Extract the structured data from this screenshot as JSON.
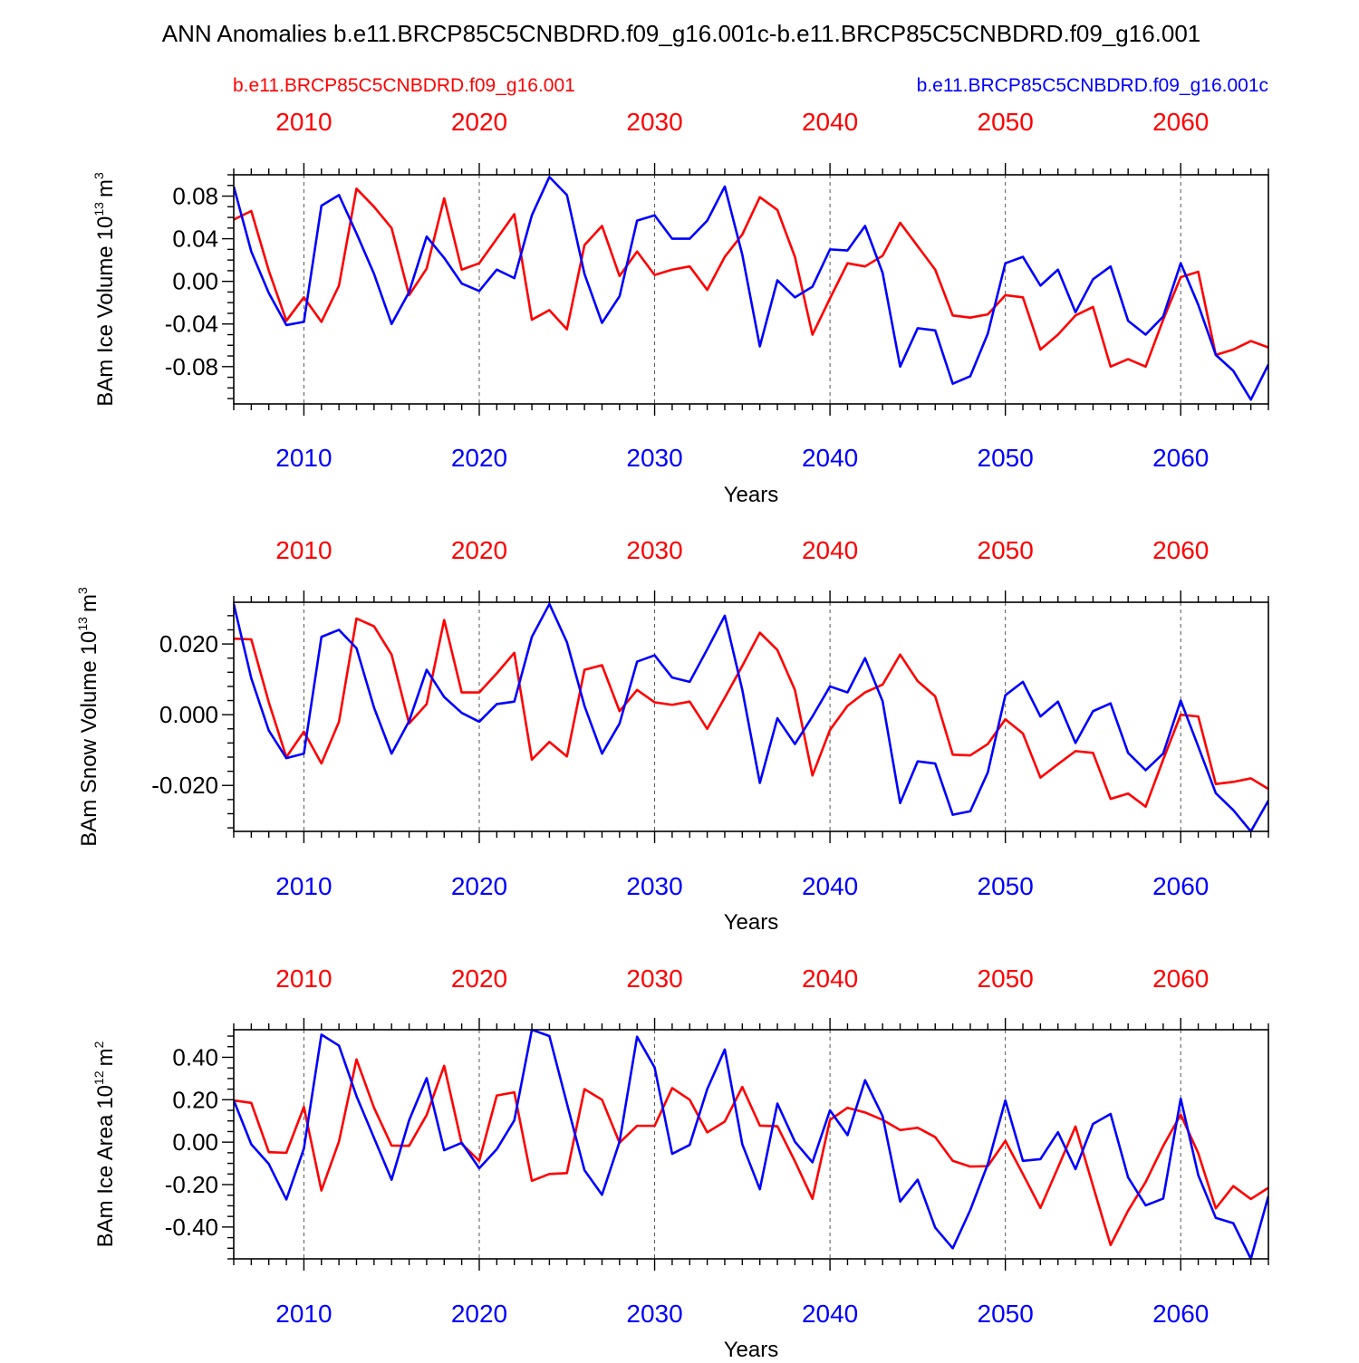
{
  "title": "ANN Anomalies b.e11.BRCP85C5CNBDRD.f09_g16.001c-b.e11.BRCP85C5CNBDRD.f09_g16.001",
  "legend": {
    "left": "b.e11.BRCP85C5CNBDRD.f09_g16.001",
    "right": "b.e11.BRCP85C5CNBDRD.f09_g16.001c"
  },
  "colors": {
    "red_series": "#ff0000",
    "blue_series": "#0000ff",
    "frame": "#000000"
  },
  "chart_data": [
    {
      "type": "line",
      "ylabel": "BAm Ice Volume",
      "ylabel_unit": "10",
      "ylabel_exp": "13",
      "ylabel_tail": "m",
      "ylabel_tail_exp": "3",
      "xlabel": "Years",
      "xlim": [
        2006,
        2065
      ],
      "ylim": [
        -0.115,
        0.1
      ],
      "yticks": [
        0.08,
        0.04,
        0.0,
        -0.04,
        -0.08
      ],
      "yticklabels": [
        "0.08",
        "0.04",
        "0.00",
        "-0.04",
        "-0.08"
      ],
      "yminor_step": 0.01,
      "xticks": [
        2010,
        2020,
        2030,
        2040,
        2050,
        2060
      ],
      "xticklabels": [
        "2010",
        "2020",
        "2030",
        "2040",
        "2050",
        "2060"
      ],
      "grid": "vertical dashed at major x ticks",
      "x_start": 2006,
      "series": [
        {
          "color": "red",
          "values": [
            0.058,
            0.066,
            0.01,
            -0.037,
            -0.015,
            -0.038,
            -0.004,
            0.087,
            0.07,
            0.05,
            -0.013,
            0.012,
            0.078,
            0.011,
            0.017,
            0.04,
            0.063,
            -0.036,
            -0.027,
            -0.045,
            0.034,
            0.052,
            0.005,
            0.028,
            0.006,
            0.011,
            0.014,
            -0.008,
            0.023,
            0.044,
            0.079,
            0.067,
            0.023,
            -0.05,
            -0.016,
            0.017,
            0.014,
            0.024,
            0.055,
            0.033,
            0.011,
            -0.032,
            -0.034,
            -0.031,
            -0.013,
            -0.015,
            -0.064,
            -0.05,
            -0.032,
            -0.024,
            -0.08,
            -0.073,
            -0.08,
            -0.036,
            0.004,
            0.009,
            -0.069,
            -0.064,
            -0.056,
            -0.062
          ]
        },
        {
          "color": "blue",
          "values": [
            0.089,
            0.028,
            -0.011,
            -0.041,
            -0.038,
            0.071,
            0.081,
            0.045,
            0.007,
            -0.04,
            -0.01,
            0.042,
            0.022,
            -0.002,
            -0.009,
            0.011,
            0.003,
            0.062,
            0.098,
            0.081,
            0.007,
            -0.039,
            -0.014,
            0.057,
            0.062,
            0.04,
            0.04,
            0.057,
            0.089,
            0.025,
            -0.061,
            0.001,
            -0.015,
            -0.005,
            0.03,
            0.029,
            0.052,
            0.008,
            -0.08,
            -0.044,
            -0.046,
            -0.096,
            -0.089,
            -0.049,
            0.017,
            0.023,
            -0.004,
            0.011,
            -0.029,
            0.002,
            0.014,
            -0.037,
            -0.05,
            -0.033,
            0.017,
            -0.022,
            -0.069,
            -0.084,
            -0.111,
            -0.078
          ]
        }
      ]
    },
    {
      "type": "line",
      "ylabel": "BAm Snow Volume",
      "ylabel_unit": "10",
      "ylabel_exp": "13",
      "ylabel_tail": "m",
      "ylabel_tail_exp": "3",
      "xlabel": "Years",
      "xlim": [
        2006,
        2065
      ],
      "ylim": [
        -0.033,
        0.0318
      ],
      "yticks": [
        0.02,
        0.0,
        -0.02
      ],
      "yticklabels": [
        "0.020",
        "0.000",
        "-0.020"
      ],
      "yminor_step": 0.004,
      "xticks": [
        2010,
        2020,
        2030,
        2040,
        2050,
        2060
      ],
      "xticklabels": [
        "2010",
        "2020",
        "2030",
        "2040",
        "2050",
        "2060"
      ],
      "grid": "vertical dashed at major x ticks",
      "x_start": 2006,
      "series": [
        {
          "color": "red",
          "values": [
            0.0215,
            0.0213,
            0.0035,
            -0.012,
            -0.0048,
            -0.0138,
            -0.002,
            0.0272,
            0.025,
            0.017,
            -0.0025,
            0.003,
            0.0268,
            0.0063,
            0.0063,
            0.0117,
            0.0175,
            -0.0127,
            -0.0077,
            -0.0118,
            0.0127,
            0.014,
            0.001,
            0.007,
            0.0035,
            0.0028,
            0.0037,
            -0.004,
            0.0048,
            0.0138,
            0.0232,
            0.0183,
            0.007,
            -0.0172,
            -0.0043,
            0.0025,
            0.0063,
            0.0085,
            0.017,
            0.0095,
            0.0052,
            -0.0113,
            -0.0115,
            -0.0083,
            -0.0013,
            -0.0053,
            -0.0178,
            -0.014,
            -0.0103,
            -0.0108,
            -0.0238,
            -0.0223,
            -0.026,
            -0.0127,
            0.0,
            -0.0005,
            -0.0196,
            -0.019,
            -0.018,
            -0.021
          ]
        },
        {
          "color": "blue",
          "values": [
            0.0313,
            0.0103,
            -0.0045,
            -0.0123,
            -0.011,
            0.022,
            0.024,
            0.0188,
            0.002,
            -0.011,
            -0.0018,
            0.0127,
            0.005,
            0.0005,
            -0.002,
            0.003,
            0.0037,
            0.022,
            0.0313,
            0.0205,
            0.0025,
            -0.011,
            -0.0025,
            0.015,
            0.0168,
            0.0105,
            0.0093,
            0.0185,
            0.028,
            0.007,
            -0.0193,
            -0.001,
            -0.0083,
            -0.0005,
            0.008,
            0.0063,
            0.016,
            0.0038,
            -0.025,
            -0.0132,
            -0.0138,
            -0.0283,
            -0.0273,
            -0.0163,
            0.0055,
            0.0093,
            -0.0005,
            0.0037,
            -0.008,
            0.001,
            0.0032,
            -0.0108,
            -0.0157,
            -0.011,
            0.004,
            -0.009,
            -0.0222,
            -0.027,
            -0.033,
            -0.0243
          ]
        }
      ]
    },
    {
      "type": "line",
      "ylabel": "BAm Ice Area",
      "ylabel_unit": "10",
      "ylabel_exp": "12",
      "ylabel_tail": "m",
      "ylabel_tail_exp": "2",
      "xlabel": "Years",
      "xlim": [
        2006,
        2065
      ],
      "ylim": [
        -0.55,
        0.53
      ],
      "yticks": [
        0.4,
        0.2,
        0.0,
        -0.2,
        -0.4
      ],
      "yticklabels": [
        "0.40",
        "0.20",
        "0.00",
        "-0.20",
        "-0.40"
      ],
      "yminor_step": 0.05,
      "xticks": [
        2010,
        2020,
        2030,
        2040,
        2050,
        2060
      ],
      "xticklabels": [
        "2010",
        "2020",
        "2030",
        "2040",
        "2050",
        "2060"
      ],
      "grid": "vertical dashed at major x ticks",
      "x_start": 2006,
      "series": [
        {
          "color": "red",
          "values": [
            0.197,
            0.185,
            -0.047,
            -0.05,
            0.166,
            -0.228,
            0.003,
            0.39,
            0.162,
            -0.016,
            -0.017,
            0.128,
            0.36,
            -0.008,
            -0.088,
            0.22,
            0.235,
            -0.182,
            -0.15,
            -0.146,
            0.25,
            0.2,
            -0.003,
            0.077,
            0.077,
            0.255,
            0.2,
            0.046,
            0.097,
            0.26,
            0.078,
            0.075,
            -0.09,
            -0.267,
            0.105,
            0.162,
            0.14,
            0.105,
            0.057,
            0.068,
            0.024,
            -0.088,
            -0.115,
            -0.113,
            0.006,
            -0.15,
            -0.31,
            -0.12,
            0.074,
            -0.207,
            -0.485,
            -0.323,
            -0.188,
            -0.018,
            0.13,
            -0.052,
            -0.312,
            -0.207,
            -0.268,
            -0.215
          ]
        },
        {
          "color": "blue",
          "values": [
            0.197,
            -0.01,
            -0.103,
            -0.27,
            -0.03,
            0.507,
            0.455,
            0.217,
            0.02,
            -0.177,
            0.103,
            0.302,
            -0.038,
            -0.003,
            -0.123,
            -0.033,
            0.103,
            0.53,
            0.5,
            0.182,
            -0.132,
            -0.248,
            0.002,
            0.497,
            0.352,
            -0.055,
            -0.013,
            0.25,
            0.437,
            -0.01,
            -0.222,
            0.182,
            0.002,
            -0.095,
            0.15,
            0.033,
            0.292,
            0.123,
            -0.28,
            -0.177,
            -0.403,
            -0.5,
            -0.32,
            -0.103,
            0.197,
            -0.088,
            -0.08,
            0.047,
            -0.127,
            0.086,
            0.133,
            -0.166,
            -0.298,
            -0.266,
            0.205,
            -0.155,
            -0.357,
            -0.382,
            -0.55,
            -0.255
          ]
        }
      ]
    }
  ]
}
